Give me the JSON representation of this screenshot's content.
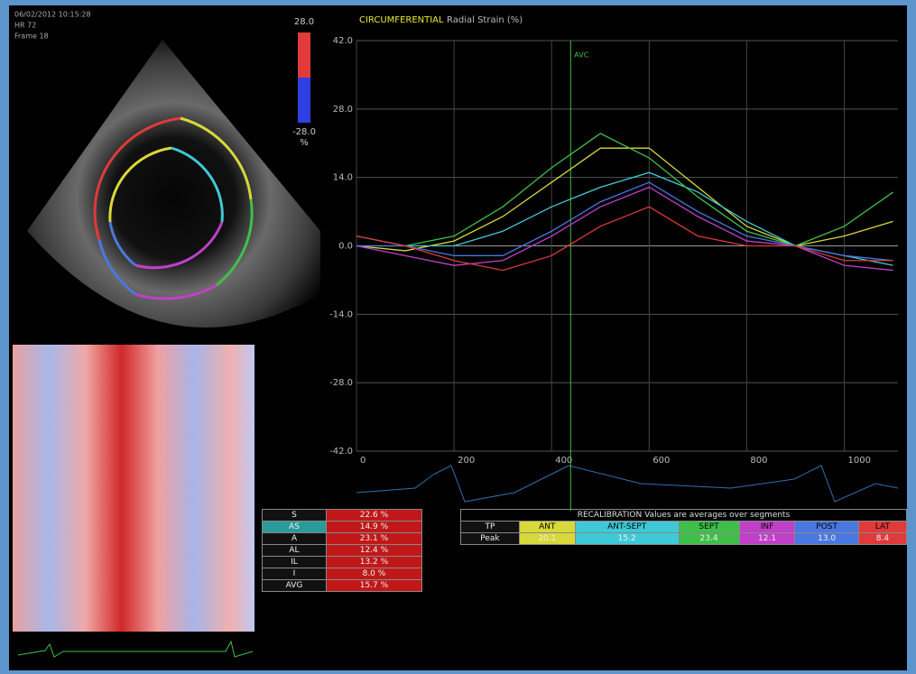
{
  "header": {
    "lines": [
      "06/02/2012 10:15:28",
      "HR 72",
      "Frame 18"
    ]
  },
  "colorbar": {
    "top_label": "28.0",
    "bottom_label": "-28.0",
    "unit": "%"
  },
  "chart_data": {
    "type": "line",
    "title": "CIRCUMFERENTIAL",
    "subtitle": "Radial Strain (%)",
    "x": [
      0,
      100,
      200,
      300,
      400,
      500,
      600,
      700,
      800,
      900,
      1000,
      1100
    ],
    "xlim": [
      0,
      1110
    ],
    "xticks": [
      0,
      200,
      400,
      600,
      800,
      1000
    ],
    "ylim": [
      -42,
      42
    ],
    "yticks": [
      {
        "value": 42,
        "label": "42.0"
      },
      {
        "value": 28,
        "label": "28.0"
      },
      {
        "value": 14,
        "label": "14.0"
      },
      {
        "value": 0,
        "label": "0.0"
      },
      {
        "value": -14,
        "label": "-14.0"
      },
      {
        "value": -28,
        "label": "-28.0"
      },
      {
        "value": -42,
        "label": "-42.0"
      }
    ],
    "grid": true,
    "marker": {
      "value": 439,
      "label": "AVC"
    },
    "series": [
      {
        "name": "ANT",
        "color": "#d8d83a",
        "values": [
          0,
          -1,
          1,
          6,
          13,
          20,
          20,
          12,
          4,
          0,
          2,
          5
        ]
      },
      {
        "name": "ANT-SEPT",
        "color": "#3fc9d6",
        "values": [
          2,
          0,
          0,
          3,
          8,
          12,
          15,
          11,
          5,
          0,
          -2,
          -4
        ]
      },
      {
        "name": "SEPT",
        "color": "#3fbf4a",
        "values": [
          0,
          0,
          2,
          8,
          16,
          23,
          18,
          10,
          3,
          0,
          4,
          11
        ]
      },
      {
        "name": "INF",
        "color": "#c040c8",
        "values": [
          0,
          -2,
          -4,
          -3,
          2,
          8,
          12,
          6,
          1,
          0,
          -4,
          -5
        ]
      },
      {
        "name": "POST",
        "color": "#4a78e0",
        "values": [
          0,
          0,
          -2,
          -2,
          3,
          9,
          13,
          7,
          2,
          0,
          -2,
          -3
        ]
      },
      {
        "name": "LAT",
        "color": "#e03a3a",
        "values": [
          2,
          0,
          -3,
          -5,
          -2,
          4,
          8,
          2,
          0,
          0,
          -3,
          -3
        ]
      }
    ]
  },
  "segment_table": {
    "rows": [
      {
        "label": "S",
        "value": "22.6 %"
      },
      {
        "label": "AS",
        "value": "14.9 %"
      },
      {
        "label": "A",
        "value": "23.1 %"
      },
      {
        "label": "AL",
        "value": "12.4 %"
      },
      {
        "label": "IL",
        "value": "13.2 %"
      },
      {
        "label": "I",
        "value": "8.0 %"
      },
      {
        "label": "AVG",
        "value": "15.7 %"
      }
    ]
  },
  "summary_table": {
    "title": "RECALIBRATION  Values are averages over segments",
    "name_row_label": "TP",
    "peak_row_label": "Peak",
    "peaks": [
      "20.1",
      "15.2",
      "23.4",
      "12.1",
      "13.0",
      "8.4"
    ]
  }
}
